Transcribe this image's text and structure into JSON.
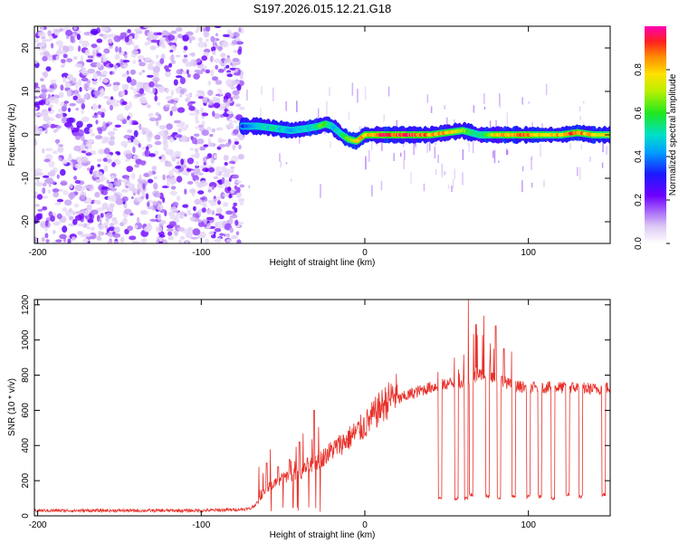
{
  "title": "S197.2026.015.12.21.G18",
  "colors": {
    "snr_line": "#e8312a",
    "axis": "#000000",
    "background": "#ffffff"
  },
  "chart_data": [
    {
      "type": "heatmap",
      "name": "spectrogram",
      "xlabel": "Height of straight line (km)",
      "ylabel": "Frequency (Hz)",
      "xlim": [
        -202,
        150
      ],
      "ylim": [
        -25,
        25
      ],
      "xticks": [
        -200,
        -100,
        0,
        100
      ],
      "yticks": [
        -20,
        -10,
        0,
        10,
        20
      ],
      "colorbar": {
        "label": "Normalized spectral amplitude",
        "range": [
          0,
          1
        ],
        "ticks": [
          0.0,
          0.2,
          0.4,
          0.6,
          0.8
        ],
        "tick_labels": [
          "0.0",
          "0.2",
          "0.4",
          "0.6",
          "0.8"
        ],
        "colormap": "purple-white to red (rainbow)"
      },
      "noise_region_x": [
        -202,
        -75
      ],
      "signal_track": {
        "x": [
          -75,
          -65,
          -55,
          -45,
          -35,
          -28,
          -24,
          -20,
          -14,
          -10,
          -5,
          0,
          10,
          20,
          30,
          40,
          50,
          60,
          65,
          70,
          80,
          90,
          100,
          110,
          120,
          130,
          140,
          150
        ],
        "freq_hz": [
          2,
          2,
          1.5,
          1,
          1.5,
          2,
          2.5,
          2,
          0,
          -1,
          -1.5,
          0,
          0,
          0,
          0,
          0,
          0.5,
          1,
          0.5,
          0,
          0,
          0,
          0,
          0,
          0,
          0.5,
          0,
          0
        ],
        "amplitude": [
          0.35,
          0.5,
          0.55,
          0.45,
          0.5,
          0.6,
          0.7,
          0.5,
          0.55,
          0.7,
          0.8,
          0.85,
          0.97,
          0.97,
          0.96,
          0.9,
          0.85,
          0.75,
          0.6,
          0.55,
          0.8,
          0.9,
          0.95,
          0.75,
          0.85,
          0.95,
          0.8,
          0.75
        ]
      }
    },
    {
      "type": "line",
      "name": "snr",
      "xlabel": "Height of straight line (km)",
      "ylabel": "SNR (10 * v/v)",
      "xlim": [
        -202,
        150
      ],
      "ylim": [
        0,
        1230
      ],
      "xticks": [
        -200,
        -100,
        0,
        100
      ],
      "yticks": [
        0,
        200,
        400,
        600,
        800,
        1000,
        1200
      ],
      "series": [
        {
          "name": "SNR",
          "baseline_x": [
            -202,
            -100,
            -80,
            -70,
            -65,
            -60,
            -50,
            -40,
            -30,
            -20,
            -10,
            0,
            10,
            20,
            30,
            40,
            45,
            50,
            60,
            70,
            80,
            90,
            100,
            110,
            120,
            130,
            140,
            150
          ],
          "baseline_y": [
            30,
            30,
            35,
            40,
            80,
            150,
            200,
            230,
            280,
            350,
            410,
            480,
            580,
            660,
            700,
            730,
            740,
            750,
            760,
            800,
            790,
            740,
            730,
            730,
            730,
            730,
            720,
            730
          ],
          "spikes": [
            {
              "x": -60,
              "y": 300
            },
            {
              "x": -53,
              "y": 280
            },
            {
              "x": -46,
              "y": 320
            },
            {
              "x": -40,
              "y": 420
            },
            {
              "x": -35,
              "y": 330
            },
            {
              "x": -31,
              "y": 600
            },
            {
              "x": 45,
              "y": 820
            },
            {
              "x": 55,
              "y": 900
            },
            {
              "x": 63,
              "y": 1230
            },
            {
              "x": 68,
              "y": 1090
            },
            {
              "x": 75,
              "y": 1050
            },
            {
              "x": 80,
              "y": 1080
            },
            {
              "x": 85,
              "y": 950
            }
          ],
          "dropouts": [
            {
              "x": 46,
              "y": 100
            },
            {
              "x": 56,
              "y": 100
            },
            {
              "x": 62,
              "y": 100
            },
            {
              "x": 65,
              "y": 120
            },
            {
              "x": 75,
              "y": 110
            },
            {
              "x": 82,
              "y": 100
            },
            {
              "x": 91,
              "y": 110
            },
            {
              "x": 100,
              "y": 110
            },
            {
              "x": 107,
              "y": 110
            },
            {
              "x": 115,
              "y": 100
            },
            {
              "x": 124,
              "y": 120
            },
            {
              "x": 132,
              "y": 110
            },
            {
              "x": 146,
              "y": 120
            }
          ]
        }
      ]
    }
  ]
}
